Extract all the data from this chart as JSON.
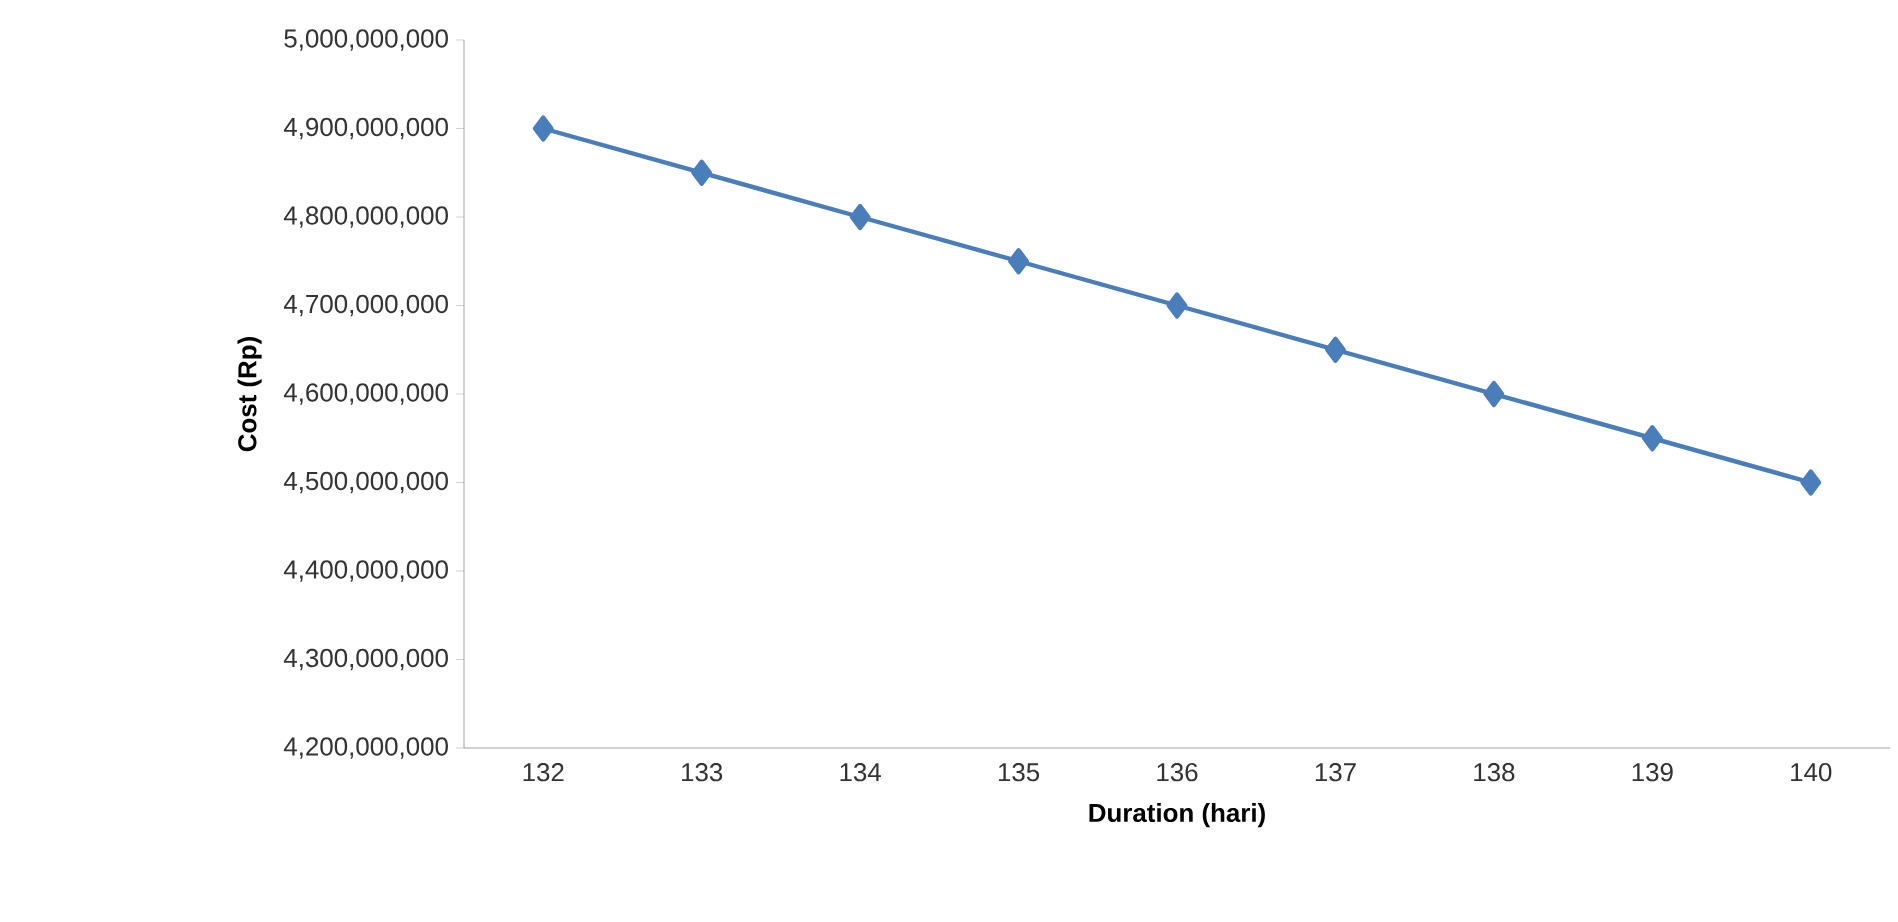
{
  "chart_data": {
    "type": "line",
    "xlabel": "Duration (hari)",
    "ylabel": "Cost (Rp)",
    "categories": [
      "132",
      "133",
      "134",
      "135",
      "136",
      "137",
      "138",
      "139",
      "140"
    ],
    "series": [
      {
        "color": "#4a7ebb",
        "values": [
          4900000000,
          4850000000,
          4800000000,
          4750000000,
          4700000000,
          4650000000,
          4600000000,
          4550000000,
          4500000000
        ]
      }
    ],
    "ylim": [
      4200000000,
      5000000000
    ],
    "yticks": [
      {
        "value": 4200000000,
        "label": "4,200,000,000"
      },
      {
        "value": 4300000000,
        "label": "4,300,000,000"
      },
      {
        "value": 4400000000,
        "label": "4,400,000,000"
      },
      {
        "value": 4500000000,
        "label": "4,500,000,000"
      },
      {
        "value": 4600000000,
        "label": "4,600,000,000"
      },
      {
        "value": 4700000000,
        "label": "4,700,000,000"
      },
      {
        "value": 4800000000,
        "label": "4,800,000,000"
      },
      {
        "value": 4900000000,
        "label": "4,900,000,000"
      },
      {
        "value": 5000000000,
        "label": "5,000,000,000"
      }
    ],
    "marker": "diamond",
    "line_style": "solid"
  }
}
